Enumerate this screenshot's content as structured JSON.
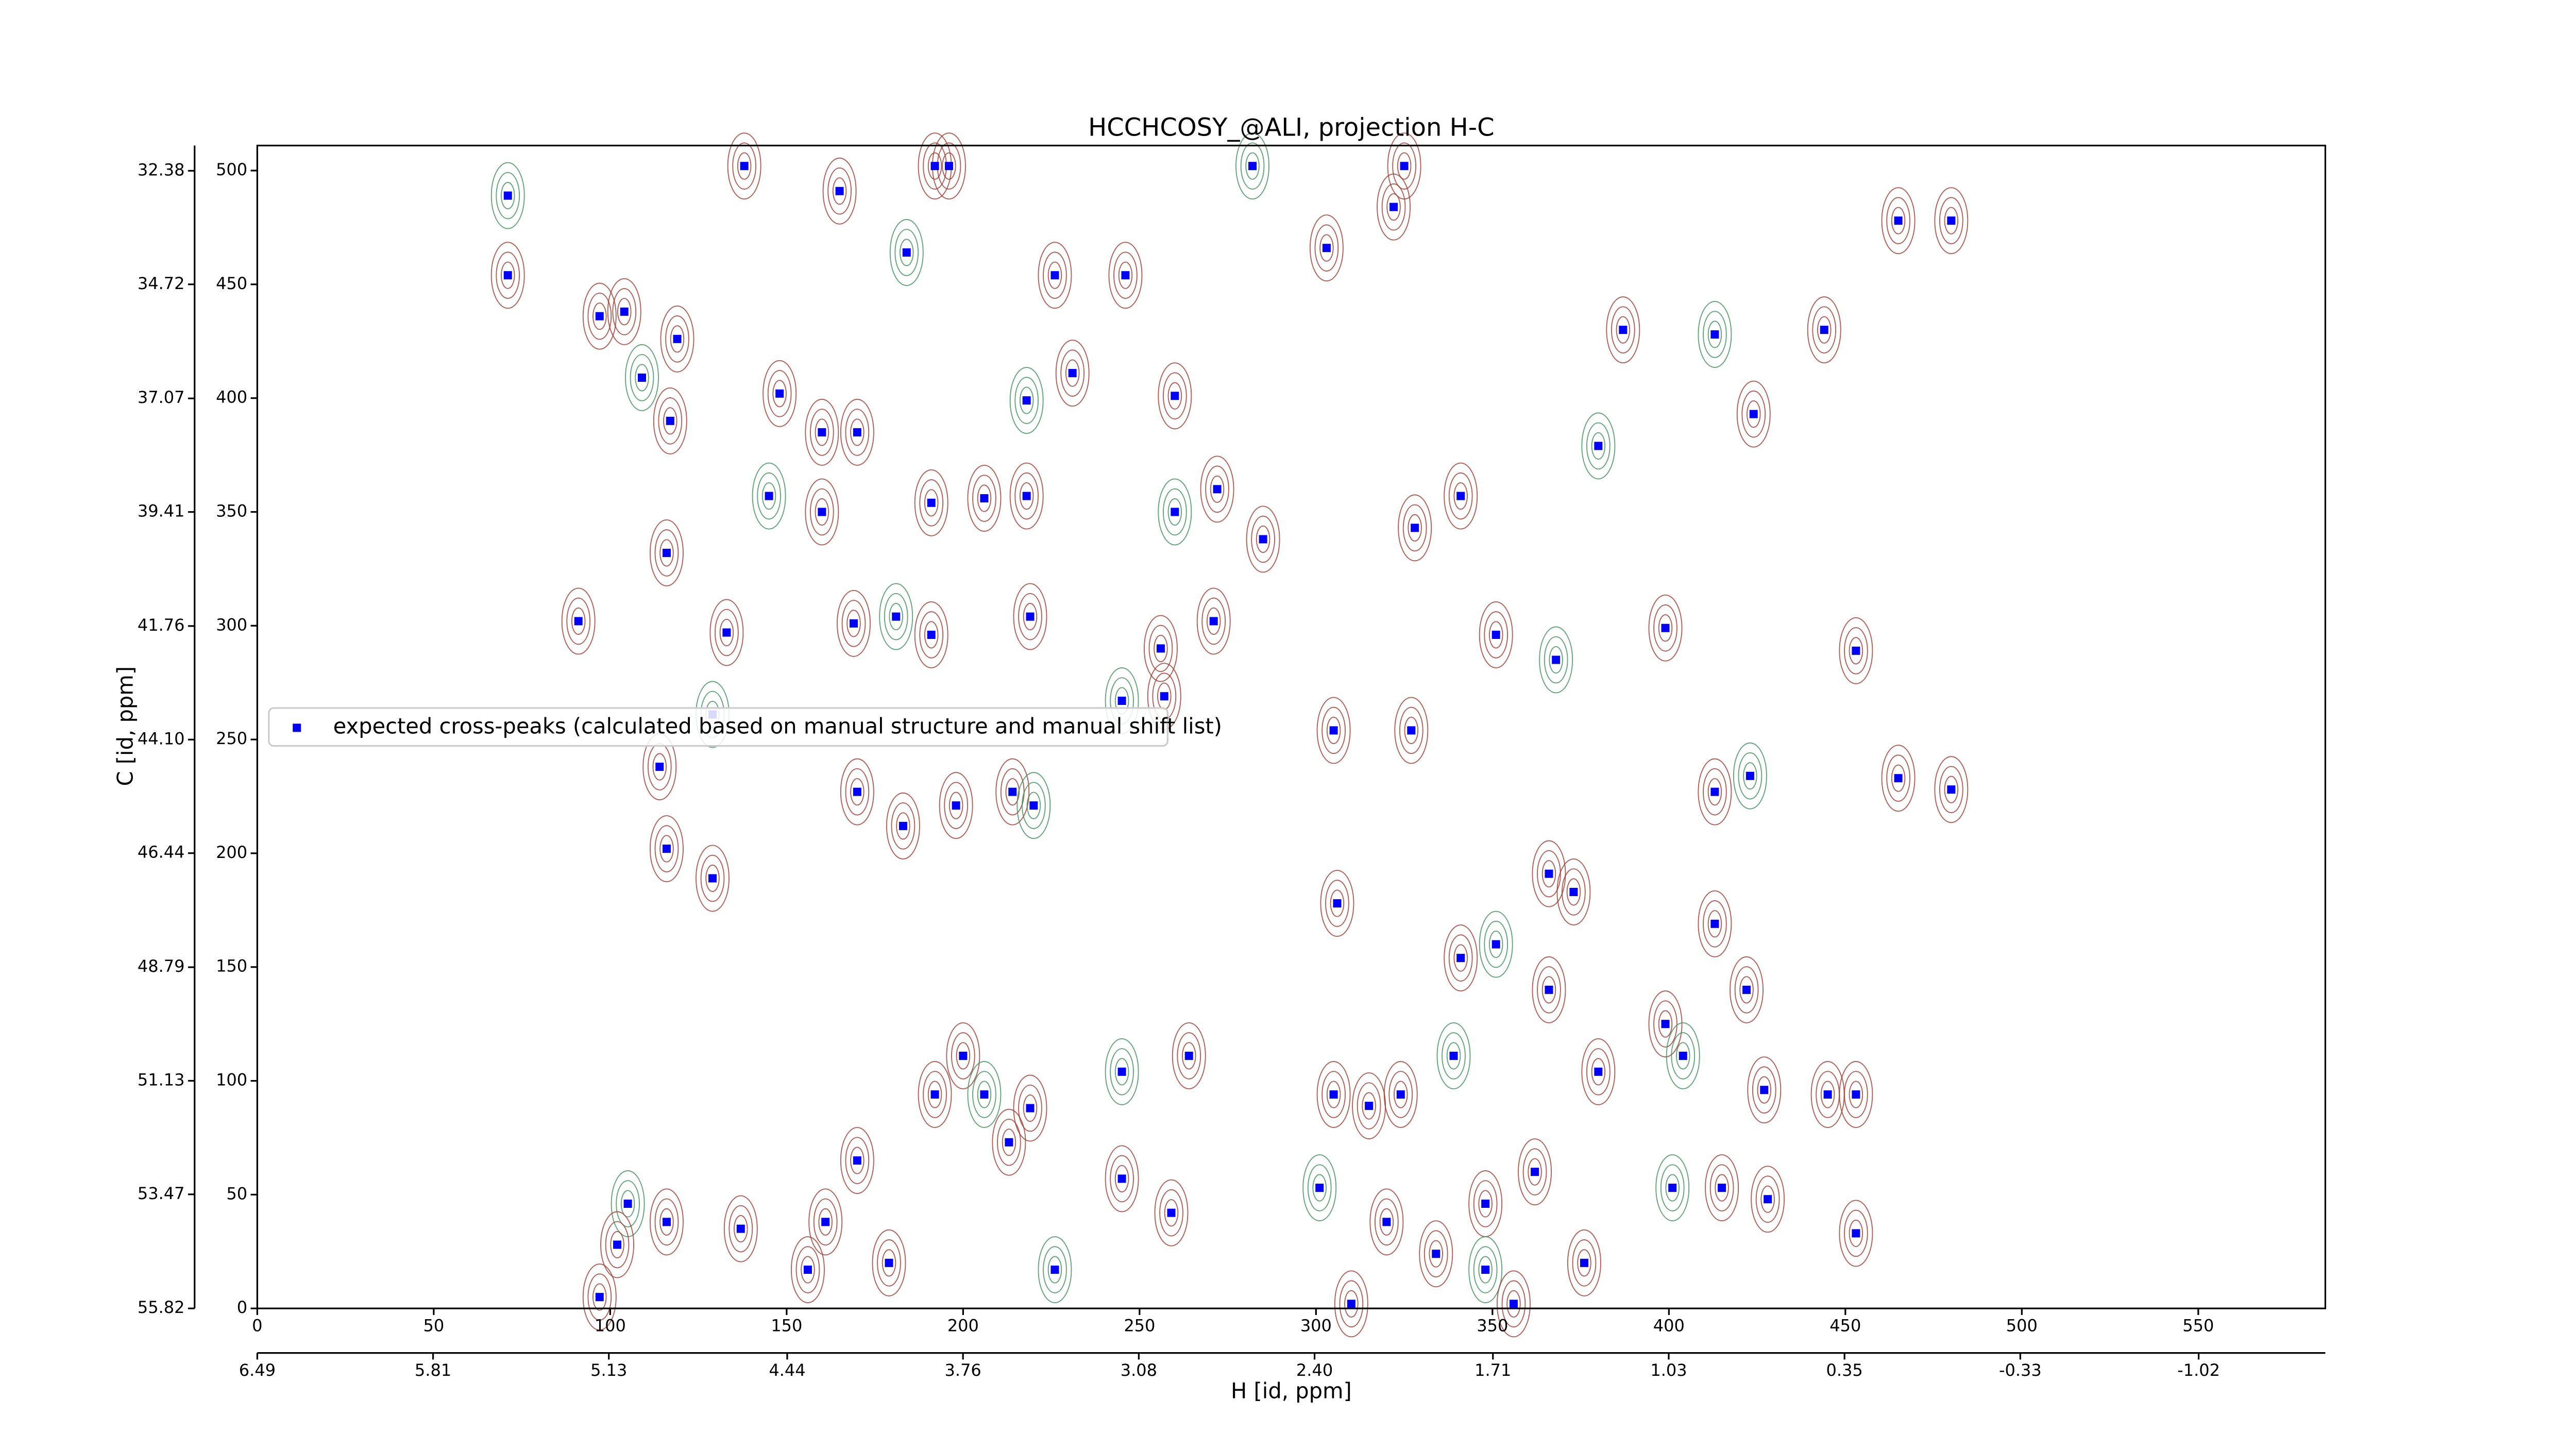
{
  "chart_data": {
    "type": "scatter",
    "title": "HCCHCOSY_@ALI, projection H-C",
    "xlabel": "H [id, ppm]",
    "ylabel": "C [id, ppm]",
    "series": [
      {
        "name": "expected cross-peaks (calculated based on manual structure and manual shift list)",
        "color": "#0000ff",
        "x": [
          71,
          71,
          97,
          104,
          119,
          109,
          117,
          148,
          160,
          170,
          218,
          231,
          260,
          246,
          226,
          184,
          192,
          196,
          138,
          165,
          282,
          325,
          303,
          322,
          387,
          413,
          465,
          480,
          444,
          424,
          380,
          341,
          328,
          285,
          272,
          260,
          191,
          206,
          218,
          160,
          145,
          116,
          91,
          133,
          169,
          181,
          191,
          219,
          256,
          271,
          245,
          257,
          305,
          327,
          351,
          368,
          399,
          453,
          465,
          480,
          423,
          413,
          366,
          373,
          306,
          129,
          114,
          116,
          129,
          214,
          220,
          198,
          170,
          183,
          341,
          351,
          366,
          413,
          422,
          399,
          404,
          445,
          453,
          427,
          380,
          339,
          324,
          315,
          305,
          264,
          245,
          219,
          213,
          200,
          192,
          206,
          170,
          161,
          137,
          116,
          105,
          97,
          102,
          245,
          259,
          301,
          320,
          334,
          348,
          362,
          401,
          415,
          428,
          453,
          376,
          348,
          310,
          356,
          156,
          179,
          226
        ],
        "values": [
          489,
          454,
          436,
          438,
          426,
          409,
          390,
          402,
          385,
          385,
          399,
          411,
          401,
          454,
          454,
          464,
          502,
          502,
          502,
          491,
          502,
          502,
          466,
          484,
          430,
          428,
          478,
          478,
          430,
          393,
          379,
          357,
          343,
          338,
          360,
          350,
          354,
          356,
          357,
          350,
          357,
          332,
          302,
          297,
          301,
          304,
          296,
          304,
          290,
          302,
          267,
          269,
          254,
          254,
          296,
          285,
          299,
          289,
          233,
          228,
          234,
          227,
          191,
          183,
          178,
          261,
          238,
          202,
          189,
          227,
          221,
          221,
          227,
          212,
          154,
          160,
          140,
          169,
          140,
          125,
          111,
          94,
          94,
          96,
          104,
          111,
          94,
          89,
          94,
          111,
          104,
          88,
          73,
          111,
          94,
          94,
          65,
          38,
          35,
          38,
          46,
          5,
          28,
          57,
          42,
          53,
          38,
          24,
          46,
          60,
          53,
          53,
          48,
          33,
          20,
          17,
          2,
          2,
          17,
          20,
          17
        ]
      }
    ],
    "xlim": [
      0,
      586
    ],
    "ylim": [
      0,
      511
    ],
    "xticks": [
      0,
      50,
      100,
      150,
      200,
      250,
      300,
      350,
      400,
      450,
      500,
      550
    ],
    "yticks": [
      0,
      50,
      100,
      150,
      200,
      250,
      300,
      350,
      400,
      450,
      500
    ],
    "x2lim": [
      6.49,
      -1.51
    ],
    "x2ticks": [
      6.49,
      5.81,
      5.13,
      4.44,
      3.76,
      3.08,
      {
        "value": 2.4,
        "label": "2.40"
      },
      1.71,
      1.03,
      0.35,
      -0.33,
      -1.02
    ],
    "y2lim": [
      55.82,
      31.86
    ],
    "y2ticks": [
      32.38,
      34.72,
      37.07,
      39.41,
      41.76,
      {
        "value": 44.1,
        "label": "44.10"
      },
      46.44,
      48.79,
      51.13,
      53.47,
      55.82
    ],
    "contour_colors": [
      "#a0392e",
      "#3f8f5a"
    ],
    "legend": "center left"
  }
}
